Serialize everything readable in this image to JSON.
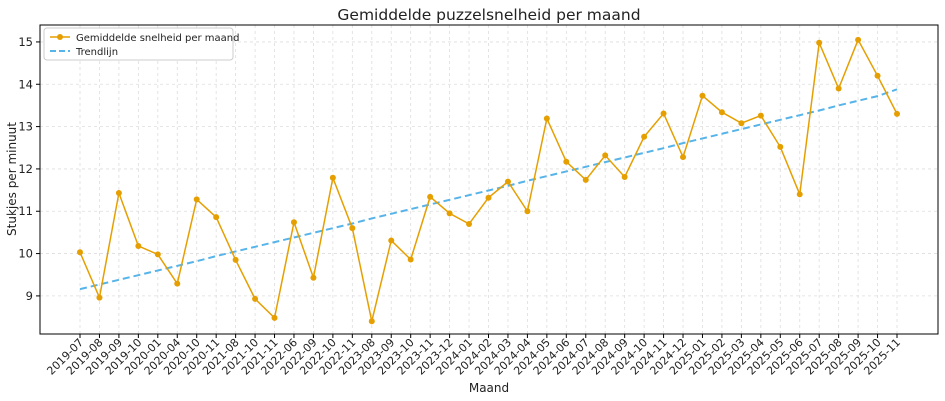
{
  "chart_data": {
    "type": "line",
    "title": "Gemiddelde puzzelsnelheid per maand",
    "xlabel": "Maand",
    "ylabel": "Stukjes per minuut",
    "ylim": [
      8.1,
      15.4
    ],
    "yticks": [
      9,
      10,
      11,
      12,
      13,
      14,
      15
    ],
    "grid": true,
    "legend_position": "top-left",
    "categories": [
      "2019-07",
      "2019-08",
      "2019-09",
      "2019-10",
      "2020-01",
      "2020-04",
      "2020-10",
      "2020-11",
      "2021-08",
      "2021-10",
      "2021-11",
      "2022-06",
      "2022-09",
      "2022-10",
      "2022-11",
      "2023-08",
      "2023-09",
      "2023-10",
      "2023-11",
      "2023-12",
      "2024-01",
      "2024-02",
      "2024-03",
      "2024-04",
      "2024-05",
      "2024-06",
      "2024-07",
      "2024-08",
      "2024-09",
      "2024-10",
      "2024-11",
      "2024-12",
      "2025-01",
      "2025-02",
      "2025-03",
      "2025-04",
      "2025-05",
      "2025-06",
      "2025-07",
      "2025-08",
      "2025-09",
      "2025-10",
      "2025-11"
    ],
    "series": [
      {
        "name": "Gemiddelde snelheid per maand",
        "color": "#E69F00",
        "style": "solid-with-markers",
        "values": [
          10.03,
          8.96,
          11.43,
          10.18,
          9.98,
          9.29,
          11.28,
          10.86,
          9.85,
          8.93,
          8.48,
          10.74,
          9.43,
          11.79,
          10.6,
          8.4,
          10.31,
          9.86,
          11.34,
          10.95,
          10.7,
          11.32,
          11.7,
          11.0,
          13.19,
          12.17,
          11.74,
          12.32,
          11.81,
          12.76,
          13.31,
          12.28,
          13.73,
          13.34,
          13.08,
          13.26,
          12.52,
          11.4,
          14.98,
          13.9,
          15.05,
          14.2,
          13.3
        ]
      },
      {
        "name": "Trendlijn",
        "color": "#56B4E9",
        "style": "dashed",
        "values": [
          9.16,
          9.27,
          9.38,
          9.49,
          9.6,
          9.71,
          9.82,
          9.94,
          10.05,
          10.16,
          10.27,
          10.38,
          10.49,
          10.6,
          10.71,
          10.83,
          10.94,
          11.05,
          11.16,
          11.27,
          11.38,
          11.49,
          11.6,
          11.72,
          11.83,
          11.94,
          12.05,
          12.16,
          12.27,
          12.38,
          12.49,
          12.61,
          12.72,
          12.83,
          12.94,
          13.05,
          13.16,
          13.27,
          13.38,
          13.5,
          13.61,
          13.72,
          13.88
        ]
      }
    ]
  }
}
